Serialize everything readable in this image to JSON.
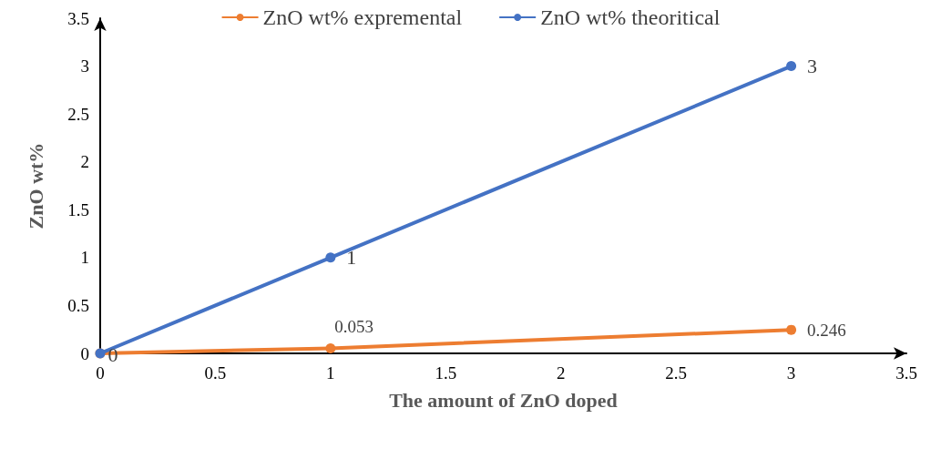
{
  "chart_data": {
    "type": "line",
    "xlabel": "The amount of ZnO doped",
    "ylabel": "ZnO wt%",
    "x": [
      0,
      1,
      3
    ],
    "series": [
      {
        "name": "ZnO wt% expremental",
        "color": "#ed7d31",
        "values": [
          0,
          0.053,
          0.246
        ],
        "value_labels": [
          null,
          "0.053",
          "0.246"
        ]
      },
      {
        "name": "ZnO wt% theoritical",
        "color": "#4472c4",
        "values": [
          0,
          1,
          3
        ],
        "value_labels": [
          "0",
          "1",
          "3"
        ]
      }
    ],
    "xlim": [
      0,
      3.5
    ],
    "xticks": [
      0,
      0.5,
      1,
      1.5,
      2,
      2.5,
      3,
      3.5
    ],
    "ylim": [
      0,
      3.5
    ],
    "yticks": [
      0,
      0.5,
      1,
      1.5,
      2,
      2.5,
      3,
      3.5
    ],
    "grid": false,
    "legend": "top",
    "marker": "circle",
    "line_style": "solid"
  }
}
